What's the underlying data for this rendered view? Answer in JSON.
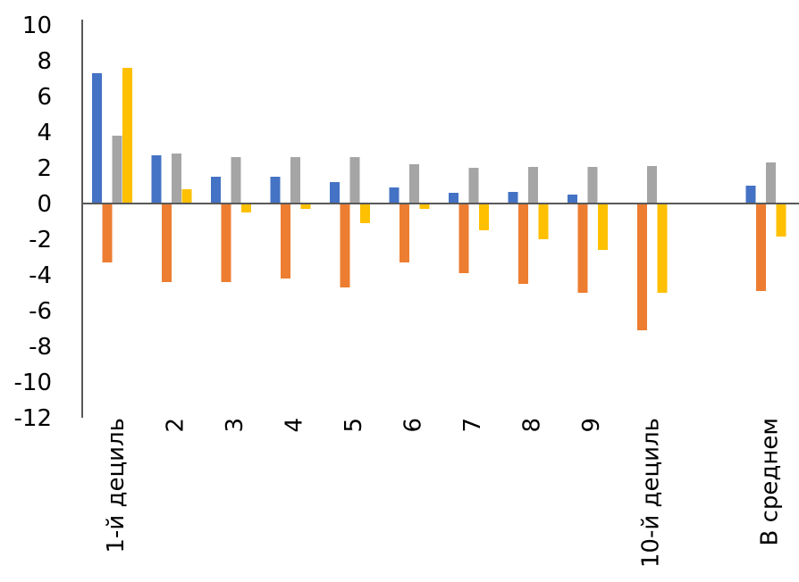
{
  "chart_data": {
    "type": "bar",
    "title": "",
    "xlabel": "",
    "ylabel": "",
    "ylim": [
      -12,
      10
    ],
    "y_ticks": [
      10,
      8,
      6,
      4,
      2,
      0,
      -2,
      -4,
      -6,
      -8,
      -10,
      -12
    ],
    "y_tick_labels": [
      "10",
      "8",
      "6",
      "4",
      "2",
      "0",
      "-2",
      "-4",
      "-6",
      "-8",
      "-10",
      "-12"
    ],
    "categories": [
      "1-й дециль",
      "2",
      "3",
      "4",
      "5",
      "6",
      "7",
      "8",
      "9",
      "10-й дециль",
      "",
      "В среднем"
    ],
    "grid": false,
    "legend": "none",
    "series": [
      {
        "color": "#4472c4",
        "values": [
          7.3,
          2.7,
          1.5,
          1.5,
          1.2,
          0.9,
          0.6,
          0.65,
          0.5,
          null,
          null,
          1.0
        ]
      },
      {
        "color": "#ed7d31",
        "values": [
          -3.3,
          -4.4,
          -4.4,
          -4.2,
          -4.7,
          -3.3,
          -3.9,
          -4.5,
          -5.0,
          -7.1,
          null,
          -4.9
        ]
      },
      {
        "color": "#a5a5a5",
        "values": [
          3.8,
          2.8,
          2.6,
          2.6,
          2.6,
          2.2,
          2.0,
          2.05,
          2.05,
          2.1,
          null,
          2.3
        ]
      },
      {
        "color": "#ffc000",
        "values": [
          7.6,
          0.8,
          -0.5,
          -0.3,
          -1.1,
          -0.3,
          -1.5,
          -2.0,
          -2.6,
          -5.0,
          null,
          -1.85
        ]
      }
    ]
  }
}
